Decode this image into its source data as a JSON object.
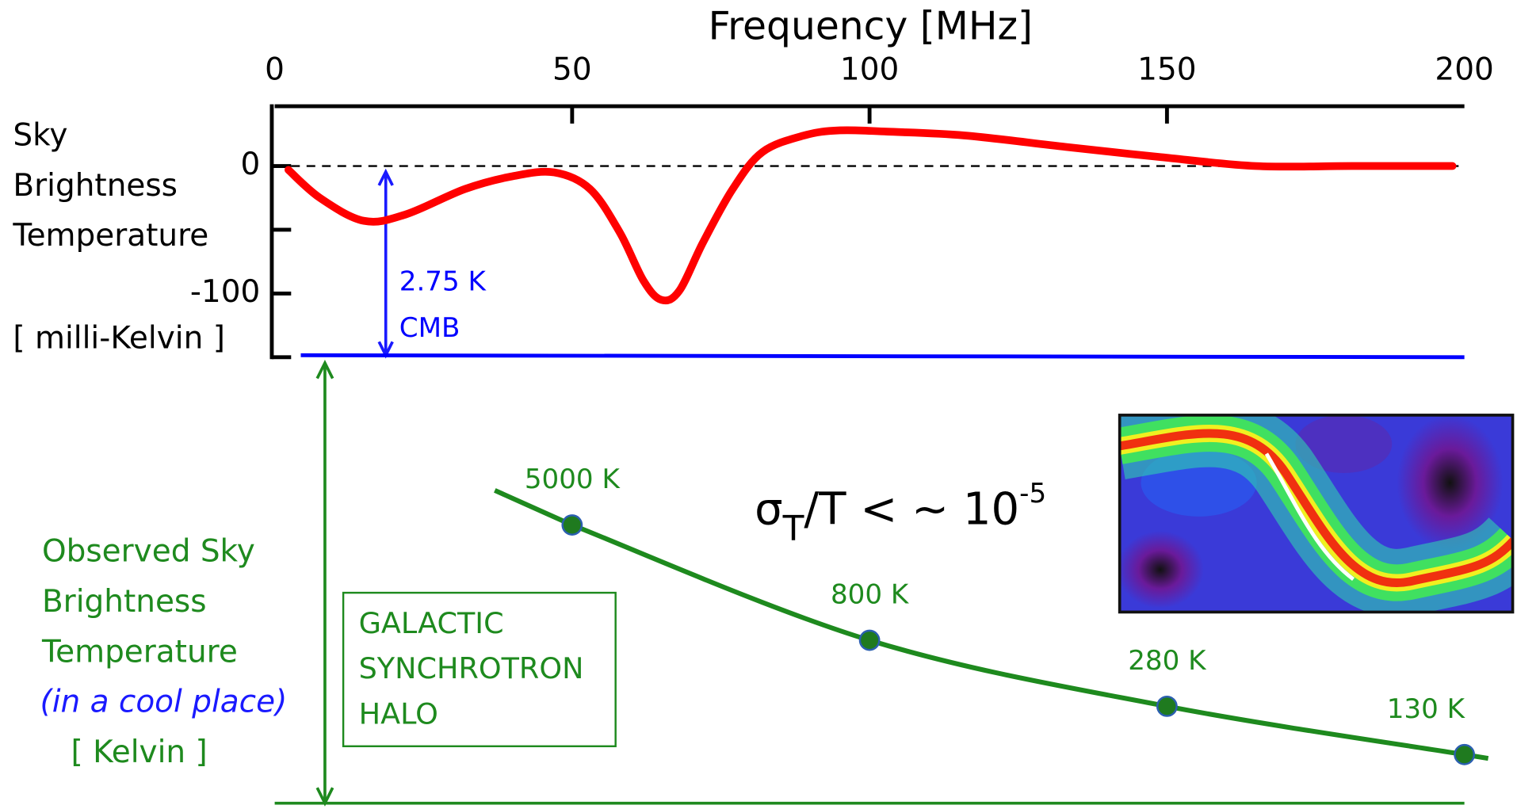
{
  "chart_data": [
    {
      "type": "line",
      "xlabel": "Frequency [MHz]",
      "xlim": [
        0,
        200
      ],
      "xticks": [
        0,
        50,
        100,
        150,
        200
      ],
      "ylabel": [
        "Sky",
        "Brightness",
        "Temperature",
        "[ milli-Kelvin ]"
      ],
      "ylim": [
        -150,
        50
      ],
      "yticks": [
        -100,
        0
      ],
      "yticks_minor": [
        -150,
        -50
      ],
      "zero_line": true,
      "series": [
        {
          "color": "#ff0000",
          "x": [
            2.3,
            7.6,
            15,
            22,
            32,
            40,
            47,
            53,
            58,
            62,
            65,
            68,
            72,
            77,
            82,
            89,
            95,
            103,
            116,
            133,
            149,
            165,
            181,
            198
          ],
          "values": [
            -3,
            -25,
            -43,
            -38,
            -18,
            -8,
            -5,
            -18,
            -52,
            -90,
            -105,
            -98,
            -60,
            -18,
            11,
            24,
            28,
            27,
            24,
            15,
            7,
            0,
            0,
            0
          ]
        }
      ],
      "annotation": [
        "2.75 K",
        "CMB"
      ],
      "annotation_color": "#0000ff",
      "baseline_color": "#0000ff"
    },
    {
      "type": "line",
      "log": true,
      "ylabel": [
        "Observed Sky",
        "Brightness",
        "Temperature"
      ],
      "ylabel_note": "(in a cool place)",
      "ylabel_unit": "[ Kelvin ]",
      "ylim": [
        60,
        72000
      ],
      "x": [
        50,
        100,
        150,
        200
      ],
      "series": [
        {
          "color": "#1e8a1e",
          "values": [
            5000,
            800,
            280,
            130
          ],
          "value_labels": [
            "5000 K",
            "800 K",
            "280 K",
            "130 K"
          ]
        }
      ],
      "box": [
        "GALACTIC",
        "SYNCHROTRON",
        "HALO"
      ]
    }
  ],
  "formula": {
    "sigma": "σ",
    "sub": "T",
    "rest": "/T  < ~ 10",
    "sup": "-5"
  }
}
